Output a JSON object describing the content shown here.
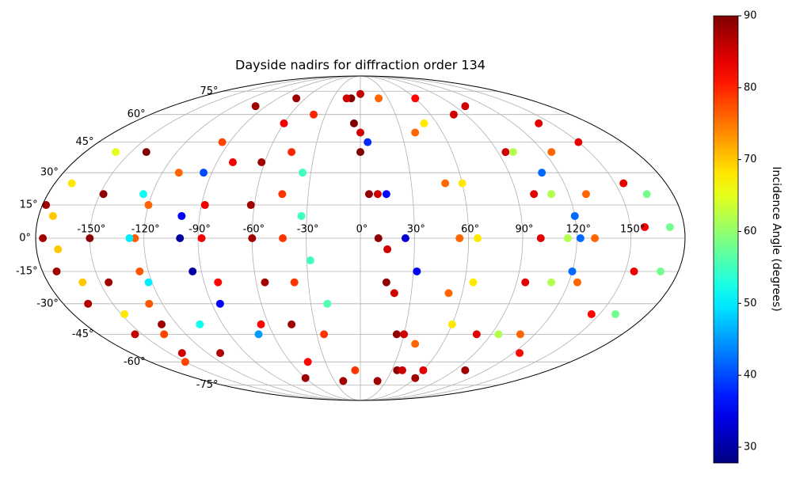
{
  "chart_data": {
    "type": "scatter",
    "projection": "mollweide",
    "title": "Dayside nadirs for diffraction order 134",
    "colorbar_label": "Incidence Angle (degrees)",
    "colormap": "jet",
    "clim": [
      27.8,
      90
    ],
    "cticks": [
      30,
      40,
      50,
      60,
      70,
      80,
      90
    ],
    "grid": true,
    "xticks": [
      {
        "value": -150,
        "label": "-150°"
      },
      {
        "value": -120,
        "label": "-120°"
      },
      {
        "value": -90,
        "label": "-90°"
      },
      {
        "value": -60,
        "label": "-60°"
      },
      {
        "value": -30,
        "label": "-30°"
      },
      {
        "value": 0,
        "label": "0°"
      },
      {
        "value": 30,
        "label": "30°"
      },
      {
        "value": 60,
        "label": "60°"
      },
      {
        "value": 90,
        "label": "90°"
      },
      {
        "value": 120,
        "label": "120°"
      },
      {
        "value": 150,
        "label": "150°"
      }
    ],
    "yticks": [
      {
        "value": -75,
        "label": "-75°"
      },
      {
        "value": -60,
        "label": "-60°"
      },
      {
        "value": -45,
        "label": "-45°"
      },
      {
        "value": -30,
        "label": "-30°"
      },
      {
        "value": -15,
        "label": "-15°"
      },
      {
        "value": 0,
        "label": "0°"
      },
      {
        "value": 15,
        "label": "15°"
      },
      {
        "value": 30,
        "label": "30°"
      },
      {
        "value": 45,
        "label": "45°"
      },
      {
        "value": 60,
        "label": "60°"
      },
      {
        "value": 75,
        "label": "75°"
      }
    ],
    "x": [
      -178,
      -176,
      -172,
      -165,
      -155,
      -140,
      -160,
      -170,
      -172,
      -168,
      -160,
      -148,
      -135,
      -150,
      -135,
      -128,
      -125,
      -125,
      -120,
      -110,
      -95,
      -140,
      -148,
      -150,
      -145,
      -130,
      -110,
      -95,
      -100,
      -100,
      -95,
      -85,
      -70,
      -125,
      -128,
      -122,
      -105,
      -60,
      -80,
      -88,
      -88,
      -82,
      -65,
      -45,
      -62,
      -62,
      -60,
      -55,
      -45,
      -35,
      -33,
      -28,
      -20,
      -40,
      -45,
      -45,
      -43,
      -38,
      -25,
      -5,
      -10,
      -5,
      0,
      5,
      10,
      15,
      25,
      35,
      40,
      30,
      20,
      15,
      10,
      0,
      -15,
      5,
      15,
      25,
      32,
      20,
      40,
      50,
      55,
      52,
      40,
      60,
      65,
      65,
      60,
      50,
      80,
      95,
      100,
      100,
      95,
      80,
      60,
      100,
      110,
      115,
      110,
      95,
      110,
      120,
      122,
      120,
      125,
      130,
      130,
      125,
      110,
      150,
      155,
      158,
      155,
      145,
      125,
      165,
      172,
      170,
      160,
      -60,
      -20,
      20,
      60,
      100,
      -100,
      -70,
      0,
      60,
      100,
      140
    ],
    "y": [
      15,
      0,
      -15,
      -30,
      -45,
      -55,
      40,
      25,
      10,
      -5,
      -20,
      -35,
      -45,
      -60,
      -45,
      -30,
      -15,
      0,
      15,
      30,
      45,
      40,
      20,
      0,
      -20,
      -40,
      -55,
      30,
      10,
      0,
      -15,
      -30,
      -45,
      20,
      0,
      -20,
      -40,
      55,
      35,
      15,
      0,
      -20,
      -40,
      -60,
      35,
      15,
      0,
      -20,
      -40,
      30,
      10,
      -10,
      -30,
      60,
      40,
      20,
      0,
      -20,
      -45,
      -65,
      70,
      55,
      40,
      20,
      0,
      -20,
      -45,
      -65,
      -65,
      -45,
      -25,
      -5,
      20,
      50,
      70,
      45,
      20,
      0,
      -15,
      70,
      50,
      25,
      0,
      -25,
      -50,
      -40,
      -20,
      0,
      25,
      55,
      60,
      40,
      20,
      0,
      -20,
      -45,
      -65,
      40,
      20,
      0,
      -20,
      -45,
      30,
      10,
      0,
      -15,
      40,
      20,
      0,
      -20,
      -45,
      45,
      25,
      5,
      -15,
      -35,
      -55,
      20,
      5,
      -15,
      -35,
      -70,
      -72,
      -72,
      -70,
      -65,
      65,
      70,
      73,
      70,
      65,
      55
    ],
    "c": [
      88,
      88,
      88,
      87,
      86,
      85,
      65,
      68,
      70,
      70,
      70,
      68,
      66,
      78,
      78,
      77,
      77,
      77,
      76,
      76,
      78,
      90,
      89,
      89,
      88,
      88,
      87,
      40,
      35,
      30,
      30,
      35,
      45,
      52,
      50,
      50,
      52,
      83,
      83,
      83,
      83,
      82,
      82,
      82,
      88,
      88,
      88,
      88,
      88,
      55,
      55,
      55,
      56,
      80,
      80,
      79,
      79,
      79,
      79,
      79,
      90,
      90,
      90,
      89,
      89,
      89,
      89,
      89,
      85,
      85,
      85,
      85,
      85,
      85,
      85,
      38,
      36,
      33,
      35,
      76,
      76,
      76,
      76,
      76,
      76,
      68,
      68,
      68,
      68,
      68,
      85,
      85,
      84,
      84,
      84,
      84,
      84,
      62,
      62,
      62,
      62,
      62,
      42,
      42,
      42,
      42,
      76,
      76,
      76,
      76,
      76,
      84,
      84,
      83,
      83,
      82,
      82,
      58,
      58,
      58,
      58,
      88,
      88,
      88,
      88,
      88,
      88,
      88,
      86,
      82,
      85,
      84
    ]
  }
}
